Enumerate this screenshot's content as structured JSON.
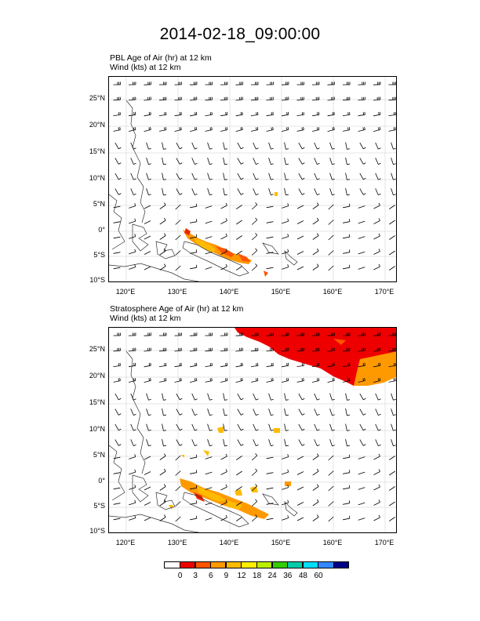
{
  "title": "2014-02-18_09:00:00",
  "panels": [
    {
      "id": "pbl",
      "field_title": "PBL Age of Air   (hr)     at   12 km",
      "wind_title": "Wind   (kts)     at   12 km"
    },
    {
      "id": "strat",
      "field_title": "Stratosphere Age of Air   (hr)     at   12 km",
      "wind_title": "Wind   (kts)     at   12 km"
    }
  ],
  "lat_labels": [
    "25°N",
    "20°N",
    "15°N",
    "10°N",
    "5°N",
    "0°",
    "5°S",
    "10°S"
  ],
  "lon_labels": [
    "120°E",
    "130°E",
    "140°E",
    "150°E",
    "160°E",
    "170°E"
  ],
  "colorbar": {
    "colors": [
      "#ffffff",
      "#ee0000",
      "#ff5500",
      "#ff9900",
      "#ffbb00",
      "#ffee00",
      "#bbee00",
      "#33cc00",
      "#00ccaa",
      "#00ddff",
      "#3388ff",
      "#000088"
    ],
    "labels": [
      "0",
      "3",
      "6",
      "9",
      "12",
      "18",
      "24",
      "36",
      "48",
      "60"
    ]
  }
}
